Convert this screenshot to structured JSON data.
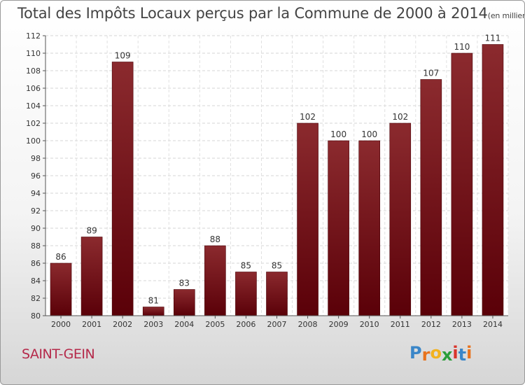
{
  "chart_data": {
    "type": "bar",
    "title": "Total des Impôts Locaux perçus par la Commune de 2000 à 2014",
    "title_unit": "(en milliers d'€)",
    "categories": [
      "2000",
      "2001",
      "2002",
      "2003",
      "2004",
      "2005",
      "2006",
      "2007",
      "2008",
      "2009",
      "2010",
      "2011",
      "2012",
      "2013",
      "2014"
    ],
    "values": [
      86,
      89,
      109,
      81,
      83,
      88,
      85,
      85,
      102,
      100,
      100,
      102,
      107,
      110,
      111
    ],
    "ylim": [
      80,
      112
    ],
    "yticks": [
      "80",
      "82",
      "84",
      "86",
      "88",
      "90",
      "92",
      "94",
      "96",
      "98",
      "100",
      "102",
      "104",
      "106",
      "108",
      "110",
      "112"
    ],
    "xlabel": "",
    "ylabel": "",
    "grid": true,
    "bar_color_top": "#8b2a2e",
    "bar_color_bottom": "#5a0008"
  },
  "footer": {
    "commune": "SAINT-GEIN",
    "logo_letters": [
      "P",
      "r",
      "o",
      "x",
      "i",
      "t",
      "i"
    ],
    "logo_colors": [
      "#3a86c8",
      "#e8721c",
      "#f2b21f",
      "#2b9e3a",
      "#d9342b",
      "#3a86c8",
      "#e8721c"
    ]
  }
}
